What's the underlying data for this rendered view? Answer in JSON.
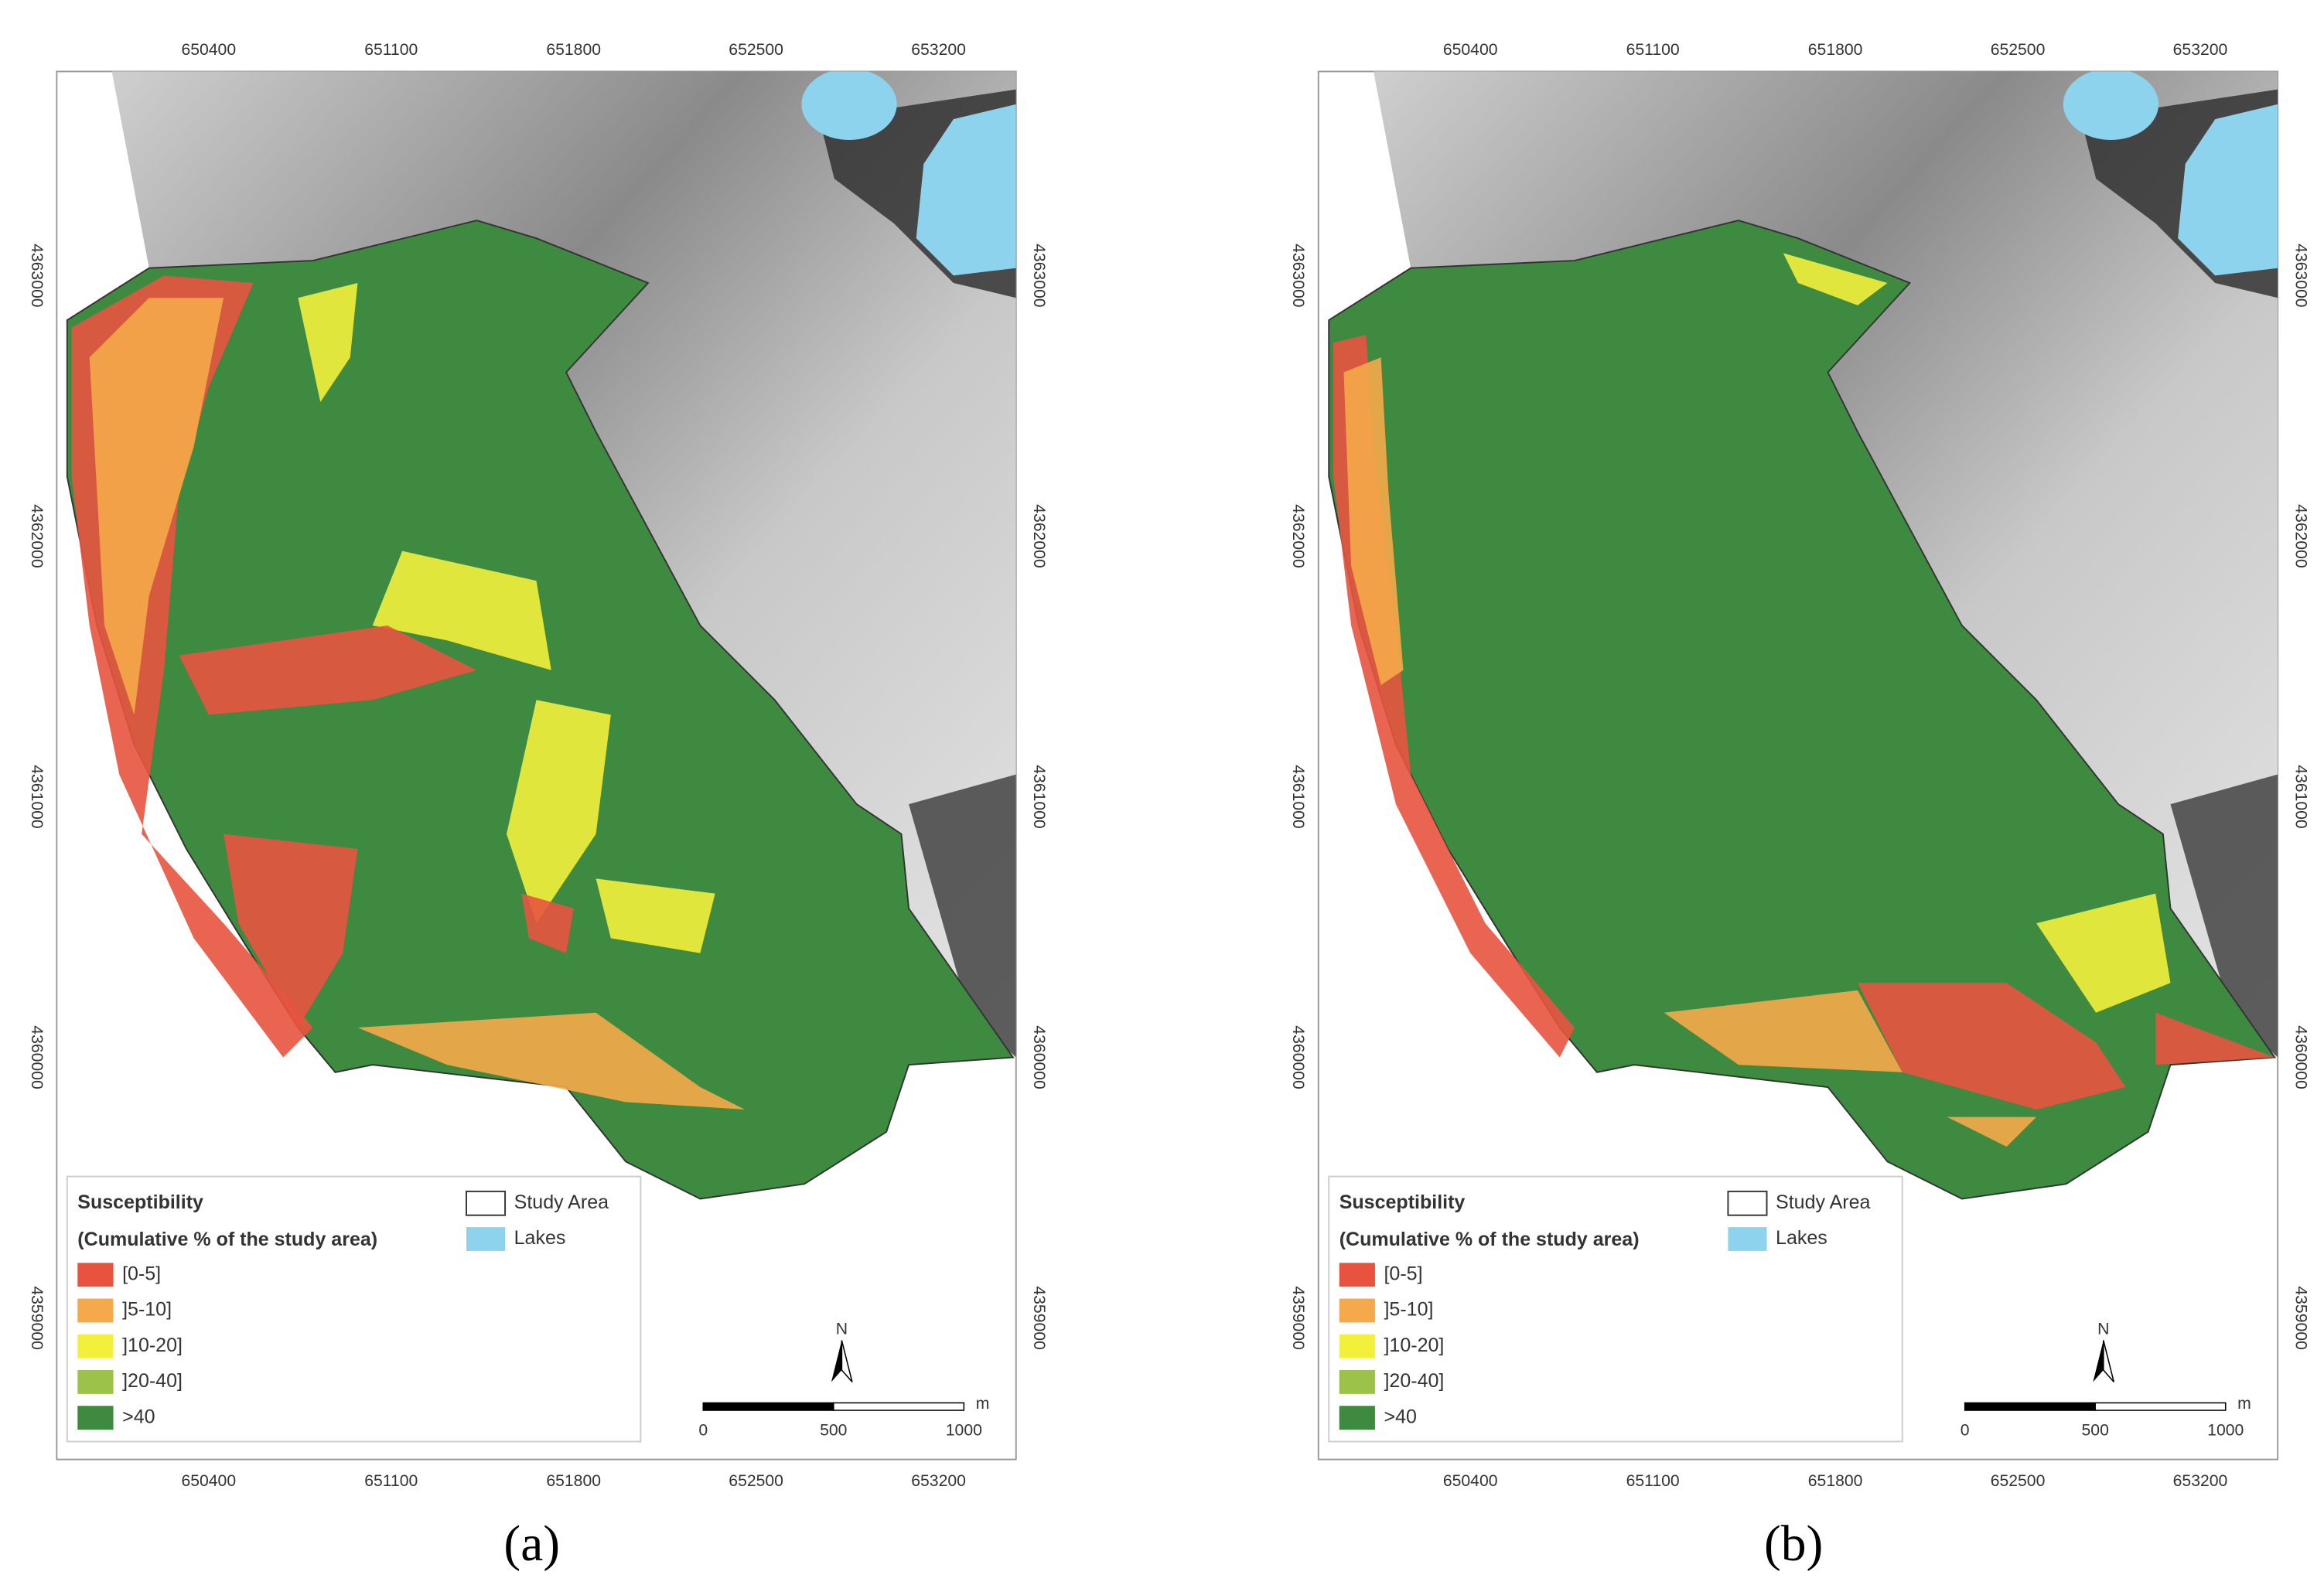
{
  "map": {
    "x_ticks": [
      650400,
      651100,
      651800,
      652500,
      653200
    ],
    "y_ticks": [
      4363000,
      4362000,
      4361000,
      4360000,
      4359000
    ],
    "legend": {
      "title": "Susceptibility",
      "subtitle": "(Cumulative % of the study area)",
      "classes": [
        {
          "label": "[0-5]",
          "color": "#e8533f"
        },
        {
          "label": "]5-10]",
          "color": "#f5a94a"
        },
        {
          "label": "]10-20]",
          "color": "#f3f03c"
        },
        {
          "label": "]20-40]",
          "color": "#9dc24a"
        },
        {
          "label": ">40",
          "color": "#3d8a40"
        }
      ],
      "study_area": "Study Area",
      "lakes": {
        "label": "Lakes",
        "color": "#8dd3ee"
      }
    },
    "north": "N",
    "scale_bar": {
      "ticks": [
        0,
        500,
        1000
      ],
      "unit": "m"
    }
  },
  "panels": [
    {
      "label": "(a)"
    },
    {
      "label": "(b)"
    }
  ]
}
